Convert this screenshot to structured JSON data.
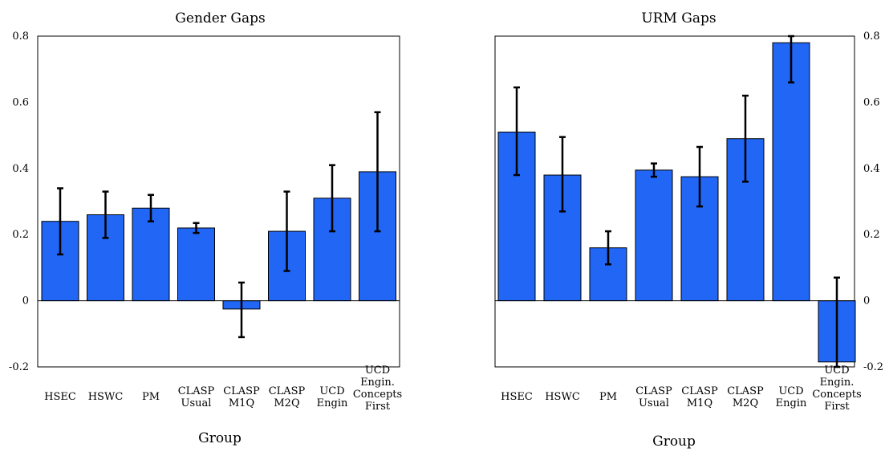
{
  "chart_data": [
    {
      "type": "bar",
      "title": "Gender Gaps",
      "xlabel": "Group",
      "ylabel": "",
      "ylim": [
        -0.2,
        0.8
      ],
      "yticks": [
        "0.8",
        "0.6",
        "0.4",
        "0.2",
        "0",
        "-0.2"
      ],
      "ytick_side": "left",
      "categories": [
        [
          "HSEC"
        ],
        [
          "HSWC"
        ],
        [
          "PM"
        ],
        [
          "CLASP",
          "Usual"
        ],
        [
          "CLASP",
          "M1Q"
        ],
        [
          "CLASP",
          "M2Q"
        ],
        [
          "UCD",
          "Engin"
        ],
        [
          "UCD",
          "Engin.",
          "Concepts",
          "First"
        ]
      ],
      "values": [
        0.24,
        0.26,
        0.28,
        0.22,
        -0.025,
        0.21,
        0.31,
        0.39
      ],
      "error_low": [
        0.14,
        0.19,
        0.24,
        0.205,
        -0.11,
        0.09,
        0.21,
        0.21
      ],
      "error_high": [
        0.34,
        0.33,
        0.32,
        0.235,
        0.055,
        0.33,
        0.41,
        0.57
      ],
      "bar_color": "#2166f5"
    },
    {
      "type": "bar",
      "title": "URM Gaps",
      "xlabel": "Group",
      "ylabel": "",
      "ylim": [
        -0.2,
        0.8
      ],
      "yticks": [
        "0.8",
        "0.6",
        "0.4",
        "0.2",
        "0",
        "-0.2"
      ],
      "ytick_side": "right",
      "categories": [
        [
          "HSEC"
        ],
        [
          "HSWC"
        ],
        [
          "PM"
        ],
        [
          "CLASP",
          "Usual"
        ],
        [
          "CLASP",
          "M1Q"
        ],
        [
          "CLASP",
          "M2Q"
        ],
        [
          "UCD",
          "Engin"
        ],
        [
          "UCD",
          "Engin.",
          "Concepts",
          "First"
        ]
      ],
      "values": [
        0.51,
        0.38,
        0.16,
        0.395,
        0.375,
        0.49,
        0.78,
        -0.185
      ],
      "error_low": [
        0.38,
        0.27,
        0.11,
        0.375,
        0.285,
        0.36,
        0.66,
        -0.2
      ],
      "error_high": [
        0.645,
        0.495,
        0.21,
        0.415,
        0.465,
        0.62,
        0.8,
        0.07
      ],
      "bar_color": "#2166f5"
    }
  ]
}
